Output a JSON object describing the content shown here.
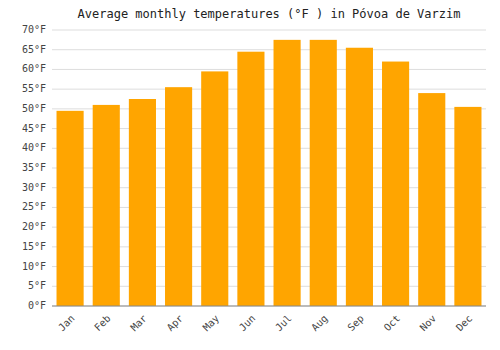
{
  "chart_data": {
    "type": "bar",
    "title": "Average monthly temperatures (°F ) in Póvoa de Varzim",
    "categories": [
      "Jan",
      "Feb",
      "Mar",
      "Apr",
      "May",
      "Jun",
      "Jul",
      "Aug",
      "Sep",
      "Oct",
      "Nov",
      "Dec"
    ],
    "values": [
      49.5,
      51.0,
      52.5,
      55.5,
      59.5,
      64.5,
      67.5,
      67.5,
      65.5,
      62.0,
      54.0,
      50.5
    ],
    "color": "#FFA500",
    "ylim": [
      0,
      70
    ],
    "yticks": [
      {
        "value": 0,
        "label": "0°F"
      },
      {
        "value": 5,
        "label": "5°F"
      },
      {
        "value": 10,
        "label": "10°F"
      },
      {
        "value": 15,
        "label": "15°F"
      },
      {
        "value": 20,
        "label": "20°F"
      },
      {
        "value": 25,
        "label": "25°F"
      },
      {
        "value": 30,
        "label": "30°F"
      },
      {
        "value": 35,
        "label": "35°F"
      },
      {
        "value": 40,
        "label": "40°F"
      },
      {
        "value": 45,
        "label": "45°F"
      },
      {
        "value": 50,
        "label": "50°F"
      },
      {
        "value": 55,
        "label": "55°F"
      },
      {
        "value": 60,
        "label": "60°F"
      },
      {
        "value": 65,
        "label": "65°F"
      },
      {
        "value": 70,
        "label": "70°F"
      }
    ],
    "grid": true
  }
}
